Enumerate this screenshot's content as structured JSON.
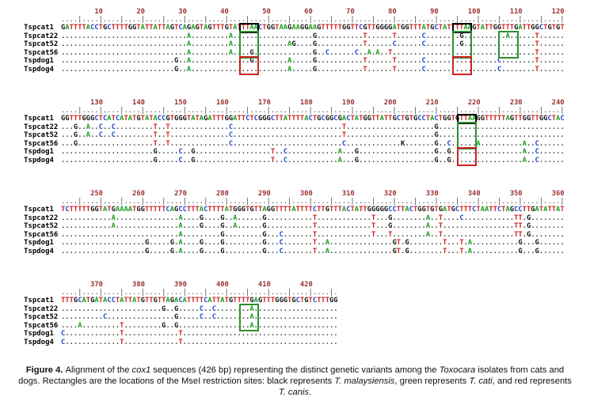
{
  "figure": {
    "caption_segments": [
      {
        "text": "Figure 4. ",
        "bold": true
      },
      {
        "text": "Alignment of the "
      },
      {
        "text": "cox1",
        "italic": true
      },
      {
        "text": " sequences (426 bp) representing the distinct genetic variants among the "
      },
      {
        "text": "Toxocara",
        "italic": true
      },
      {
        "text": " isolates from cats and dogs. Rectangles are the locations of the MseI restriction sites: black represents "
      },
      {
        "text": "T. malaysiensis",
        "italic": true
      },
      {
        "text": ", green represents "
      },
      {
        "text": "T. cati",
        "italic": true
      },
      {
        "text": ", and red represents "
      },
      {
        "text": "T. canis",
        "italic": true
      },
      {
        "text": "."
      }
    ]
  },
  "alignment": {
    "sequence_length_bp": 426,
    "row_names": [
      "Tspcat1",
      "Tspcat22",
      "Tspcat52",
      "Tspcat56",
      "Tspdog1",
      "Tspdog4"
    ],
    "nucleotide_colors": {
      "A": "#1e9e1e",
      "C": "#2244cc",
      "G": "#141414",
      "T": "#cc2222",
      "K": "#141414"
    },
    "match_dot_color": "#444444",
    "ruler_number_color": "#993333",
    "ruler_tick_color": "#4a4a4a",
    "box_colors": {
      "black": "#000000",
      "green": "#2f8f2f",
      "red": "#cc2222"
    },
    "block_tops": [
      10,
      125,
      240,
      355
    ],
    "blocks": [
      {
        "start": 1,
        "ref": "GATTTTACCTGCTTTTGGTATTATTAGTCAGAGTAGTTTGTATTTAACTGGTAAGAAGGAAGTTTTTGGTTCGTTGGGGATGGTTTATGCTATTTTAAGTATTGGTTTGATTGGCTGTGT",
        "variants": {
          "Tspcat22": {
            "31": "A",
            "41": "A",
            "61": "G",
            "73": "T",
            "80": "T",
            "87": "C",
            "96": "G",
            "107": "A",
            "114": "T"
          },
          "Tspcat52": {
            "31": "A",
            "41": "A",
            "55": "A",
            "56": "G",
            "61": "G",
            "73": "T",
            "80": "C",
            "87": "C",
            "96": "G",
            "114": "T"
          },
          "Tspcat56": {
            "31": "A",
            "41": "A",
            "46": "G",
            "61": "G",
            "64": "C",
            "71": "C",
            "74": "A",
            "76": "A",
            "79": "T",
            "114": "T"
          },
          "Tspdog1": {
            "28": "G",
            "31": "A",
            "46": "G",
            "55": "A",
            "61": "G",
            "73": "T",
            "80": "T",
            "87": "C",
            "105": "C",
            "114": "T"
          },
          "Tspdog4": {
            "28": "G",
            "31": "A",
            "55": "A",
            "61": "G",
            "73": "T",
            "80": "T",
            "87": "C",
            "105": "C",
            "114": "T"
          }
        },
        "boxes": [
          {
            "color": "black",
            "from": 44,
            "to": 47,
            "row_from": 0,
            "row_to": 0
          },
          {
            "color": "green",
            "from": 44,
            "to": 47,
            "row_from": 1,
            "row_to": 3
          },
          {
            "color": "red",
            "from": 44,
            "to": 47,
            "row_from": 4,
            "row_to": 5
          },
          {
            "color": "black",
            "from": 95,
            "to": 98,
            "row_from": 0,
            "row_to": 0
          },
          {
            "color": "green",
            "from": 95,
            "to": 98,
            "row_from": 1,
            "row_to": 3
          },
          {
            "color": "green",
            "from": 106,
            "to": 109,
            "row_from": 1,
            "row_to": 3
          },
          {
            "color": "red",
            "from": 95,
            "to": 98,
            "row_from": 4,
            "row_to": 5
          }
        ]
      },
      {
        "start": 121,
        "ref": "GGTTTGGGCTCATCATATGTATACCGTGGGTATAGATTTGGATTCTCGGGCTTATTTTACTGCGGCGACTATGGTTATTGCTGTGCCTACTGGTGTTAAGGTTTTTAGTTGGTTGGCTAC",
        "variants": {
          "Tspcat22": {
            "124": "G",
            "127": "A",
            "130": "C",
            "133": "C",
            "143": "T",
            "146": "T",
            "161": "C",
            "188": "T",
            "210": "G"
          },
          "Tspcat52": {
            "124": "G",
            "127": "A",
            "130": "C",
            "133": "C",
            "143": "T",
            "146": "T",
            "161": "C",
            "188": "T",
            "210": "G"
          },
          "Tspcat56": {
            "124": "G",
            "143": "T",
            "146": "T",
            "161": "C",
            "188": "C",
            "202": "K",
            "210": "G",
            "213": "C",
            "220": "A",
            "231": "A",
            "234": "C"
          },
          "Tspdog1": {
            "143": "G",
            "149": "C",
            "152": "G",
            "171": "T",
            "174": "C",
            "187": "A",
            "191": "G",
            "210": "G",
            "213": "G",
            "231": "A",
            "234": "C"
          },
          "Tspdog4": {
            "143": "G",
            "149": "C",
            "152": "G",
            "171": "T",
            "174": "C",
            "187": "A",
            "191": "G",
            "210": "G",
            "213": "G",
            "231": "A",
            "234": "C"
          }
        },
        "boxes": [
          {
            "color": "black",
            "from": 216,
            "to": 219,
            "row_from": 0,
            "row_to": 0
          },
          {
            "color": "green",
            "from": 216,
            "to": 219,
            "row_from": 1,
            "row_to": 3
          },
          {
            "color": "red",
            "from": 216,
            "to": 219,
            "row_from": 4,
            "row_to": 5
          }
        ]
      },
      {
        "start": 241,
        "ref": "TCTTTTTGGTATGAAAATGGTTTTTCAGCCTTTACTTTTATGGGTGTTAGGTTTTATTTTCTTGTTTACTATTGGGGGCCTTACTGGTGTGATGCTTTCTAATTCTAGCCTTGATATTAT",
        "variants": {
          "Tspcat22": {
            "253": "A",
            "269": "A",
            "274": "G",
            "279": "G",
            "282": "A",
            "289": "G",
            "301": "T",
            "315": "T",
            "319": "G",
            "328": "A",
            "331": "T",
            "336": "C",
            "349": "T",
            "350": "T",
            "352": "G"
          },
          "Tspcat52": {
            "253": "A",
            "269": "A",
            "274": "G",
            "279": "G",
            "282": "A",
            "289": "G",
            "301": "T",
            "315": "T",
            "319": "G",
            "328": "A",
            "331": "T",
            "349": "T",
            "350": "T",
            "352": "G"
          },
          "Tspcat56": {
            "269": "A",
            "279": "G",
            "289": "G",
            "293": "C",
            "301": "T",
            "315": "T",
            "319": "T",
            "328": "A",
            "331": "T",
            "349": "T",
            "350": "T",
            "352": "G"
          },
          "Tspdog1": {
            "261": "G",
            "267": "G",
            "269": "A",
            "274": "G",
            "279": "G",
            "289": "G",
            "293": "C",
            "301": "T",
            "304": "A",
            "320": "G",
            "321": "T",
            "323": "G",
            "332": "T",
            "336": "T",
            "338": "A",
            "350": "G",
            "354": "G"
          },
          "Tspdog4": {
            "261": "G",
            "267": "G",
            "269": "A",
            "274": "G",
            "279": "G",
            "289": "G",
            "293": "C",
            "301": "T",
            "304": "A",
            "320": "G",
            "321": "T",
            "323": "G",
            "332": "T",
            "336": "T",
            "338": "A",
            "350": "G",
            "354": "G"
          }
        },
        "boxes": []
      },
      {
        "start": 361,
        "ref": "TTTGCATGATACCTATTATGTTGTTAGACATTTTCATTATGTTTTGAGTTTGGGTGCTGTCTTTGG",
        "variants": {
          "Tspcat22": {
            "385": "G",
            "388": "G",
            "394": "C",
            "397": "C",
            "406": "A"
          },
          "Tspcat52": {
            "371": "C",
            "388": "G",
            "394": "C",
            "397": "C",
            "406": "A"
          },
          "Tspcat56": {
            "365": "A",
            "375": "T",
            "385": "G",
            "388": "G",
            "406": "A"
          },
          "Tspdog1": {
            "361": "C",
            "375": "T",
            "389": "T"
          },
          "Tspdog4": {
            "361": "C",
            "375": "T",
            "389": "T"
          }
        },
        "boxes": [
          {
            "color": "green",
            "from": 404,
            "to": 407,
            "row_from": 1,
            "row_to": 3
          }
        ]
      }
    ]
  }
}
